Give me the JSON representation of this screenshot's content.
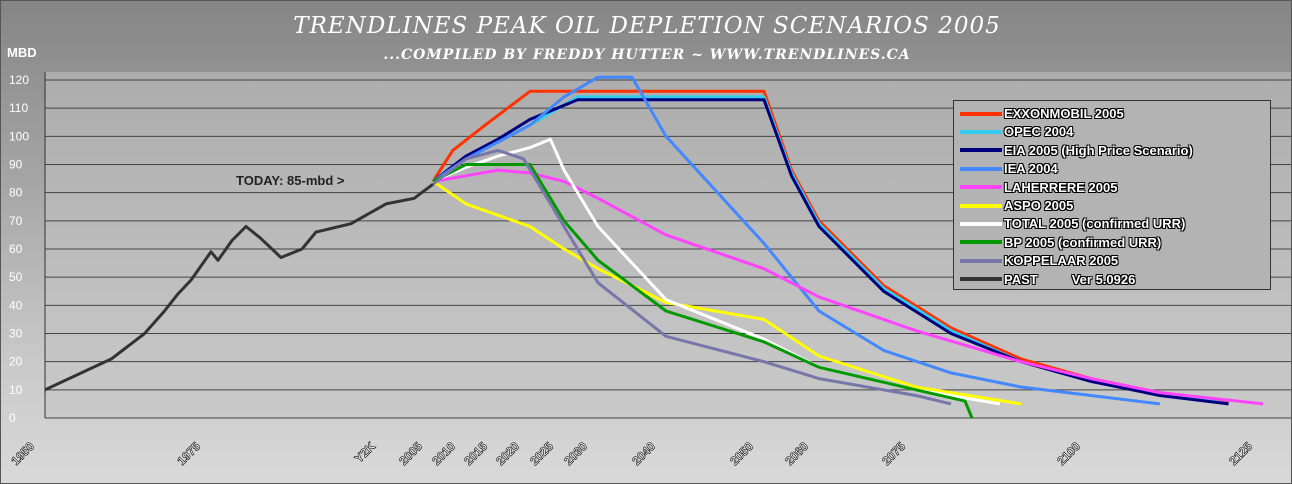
{
  "chart_data": {
    "type": "line",
    "title": "TRENDLINES PEAK OIL DEPLETION SCENARIOS 2005",
    "subtitle": "...COMPILED BY FREDDY HUTTER ~ WWW.TRENDLINES.CA",
    "ylabel": "MBD",
    "ylim": [
      0,
      120
    ],
    "yticks": [
      0,
      10,
      20,
      30,
      40,
      50,
      60,
      70,
      80,
      90,
      100,
      110,
      120
    ],
    "grid": true,
    "legend_position": "right",
    "annotation": "TODAY:  85-mbd >",
    "version_label": "Ver 5.0926",
    "x_ticks": [
      "1950",
      "1975",
      "Y2K",
      "2005",
      "2010",
      "2015",
      "2020",
      "2025",
      "2030",
      "2040",
      "2050",
      "2060",
      "2075",
      "2100",
      "2125"
    ],
    "series": [
      {
        "name": "EXXONMOBIL 2005",
        "color": "#ff3300",
        "x": [
          2005,
          2008,
          2013,
          2020,
          2050,
          2055,
          2060,
          2070,
          2080,
          2090,
          2100,
          2110,
          2120
        ],
        "y": [
          84,
          95,
          104,
          116,
          116,
          88,
          70,
          47,
          32,
          21,
          14,
          9,
          6
        ]
      },
      {
        "name": "OPEC 2004",
        "color": "#33ccee",
        "x": [
          2005,
          2010,
          2015,
          2020,
          2027,
          2050,
          2055,
          2060,
          2070,
          2080,
          2090,
          2100,
          2110,
          2120
        ],
        "y": [
          84,
          92,
          98,
          104,
          114,
          114,
          87,
          69,
          46,
          31,
          20,
          13,
          9,
          5
        ]
      },
      {
        "name": "EIA 2005 (High Price Scenario)",
        "color": "#00007f",
        "x": [
          2005,
          2010,
          2015,
          2020,
          2027,
          2050,
          2055,
          2060,
          2070,
          2080,
          2090,
          2100,
          2110,
          2120
        ],
        "y": [
          84,
          93,
          99,
          106,
          113,
          113,
          86,
          68,
          45,
          30,
          20,
          13,
          8,
          5
        ]
      },
      {
        "name": "IEA 2004",
        "color": "#4488ff",
        "x": [
          2005,
          2010,
          2015,
          2020,
          2025,
          2030,
          2035,
          2040,
          2050,
          2060,
          2070,
          2080,
          2090,
          2100,
          2110
        ],
        "y": [
          84,
          92,
          98,
          104,
          114,
          121,
          121,
          100,
          62,
          38,
          24,
          16,
          11,
          8,
          5
        ]
      },
      {
        "name": "LAHERRERE 2005",
        "color": "#ff44ff",
        "x": [
          2005,
          2010,
          2015,
          2020,
          2025,
          2030,
          2040,
          2050,
          2060,
          2075,
          2090,
          2100,
          2110,
          2125
        ],
        "y": [
          84,
          86,
          88,
          87,
          84,
          78,
          65,
          53,
          43,
          31,
          20,
          14,
          9,
          5
        ]
      },
      {
        "name": "ASPO 2005",
        "color": "#ffff00",
        "x": [
          2005,
          2010,
          2015,
          2020,
          2025,
          2030,
          2040,
          2050,
          2060,
          2075,
          2090
        ],
        "y": [
          84,
          76,
          72,
          68,
          60,
          53,
          41,
          35,
          22,
          11,
          5
        ]
      },
      {
        "name": "TOTAL 2005 (confirmed URR)",
        "color": "#ffffff",
        "x": [
          2005,
          2010,
          2015,
          2020,
          2023,
          2025,
          2030,
          2040,
          2050,
          2060,
          2075,
          2087
        ],
        "y": [
          84,
          89,
          93,
          96,
          99,
          88,
          68,
          42,
          28,
          18,
          10,
          5
        ]
      },
      {
        "name": "BP 2005 (confirmed URR)",
        "color": "#009900",
        "x": [
          2005,
          2010,
          2015,
          2020,
          2025,
          2030,
          2040,
          2050,
          2060,
          2075,
          2082,
          2083
        ],
        "y": [
          84,
          90,
          90,
          90,
          70,
          56,
          38,
          27,
          18,
          10,
          6,
          0
        ]
      },
      {
        "name": "KOPPELAAR 2005",
        "color": "#7777aa",
        "x": [
          2005,
          2010,
          2015,
          2019,
          2025,
          2030,
          2040,
          2050,
          2060,
          2075,
          2080
        ],
        "y": [
          83,
          92,
          95,
          92,
          68,
          48,
          29,
          20,
          14,
          8,
          5
        ]
      },
      {
        "name": "PAST",
        "color": "#333333",
        "x": [
          1950,
          1960,
          1965,
          1968,
          1970,
          1972,
          1975,
          1976,
          1978,
          1980,
          1982,
          1985,
          1988,
          1990,
          1995,
          2000,
          2003,
          2005
        ],
        "y": [
          10,
          21,
          30,
          38,
          44,
          49,
          59,
          56,
          63,
          68,
          64,
          57,
          60,
          66,
          69,
          76,
          78,
          83
        ]
      }
    ]
  }
}
